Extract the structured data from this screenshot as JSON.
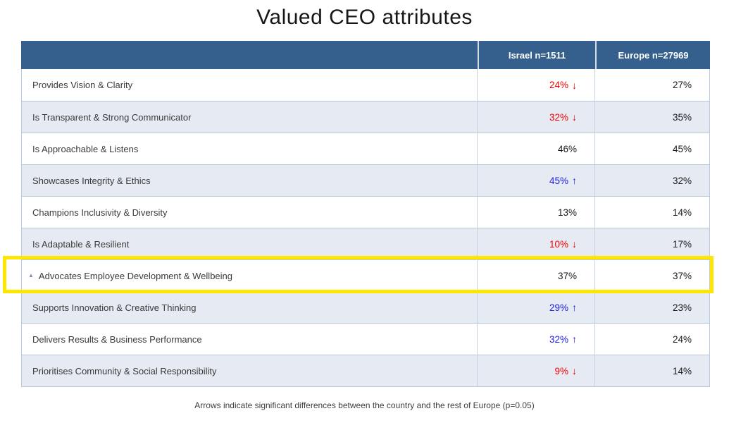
{
  "title": "Valued CEO attributes",
  "footnote": "Arrows indicate significant differences between the country and the rest of Europe (p=0.05)",
  "icons": {
    "up_arrow": "↑",
    "down_arrow": "↓",
    "caret": "▲"
  },
  "colors": {
    "header_bg": "#35608D",
    "row_alt": "#E6EAF2",
    "row_border": "#B9C8DB",
    "sig_down": "#F20000",
    "sig_up": "#2121DF",
    "highlight": "#FFE600"
  },
  "table": {
    "columns": [
      "Israel n=1511",
      "Europe n=27969"
    ],
    "rows": [
      {
        "label": "Provides Vision & Clarity",
        "israel": "24%",
        "israel_sig": "down",
        "europe": "27%",
        "highlighted": false,
        "marker": false
      },
      {
        "label": "Is Transparent & Strong Communicator",
        "israel": "32%",
        "israel_sig": "down",
        "europe": "35%",
        "highlighted": false,
        "marker": false
      },
      {
        "label": "Is Approachable & Listens",
        "israel": "46%",
        "israel_sig": null,
        "europe": "45%",
        "highlighted": false,
        "marker": false
      },
      {
        "label": "Showcases Integrity & Ethics",
        "israel": "45%",
        "israel_sig": "up",
        "europe": "32%",
        "highlighted": false,
        "marker": false
      },
      {
        "label": "Champions Inclusivity & Diversity",
        "israel": "13%",
        "israel_sig": null,
        "europe": "14%",
        "highlighted": false,
        "marker": false
      },
      {
        "label": "Is Adaptable & Resilient",
        "israel": "10%",
        "israel_sig": "down",
        "europe": "17%",
        "highlighted": false,
        "marker": false
      },
      {
        "label": "Advocates Employee Development & Wellbeing",
        "israel": "37%",
        "israel_sig": null,
        "europe": "37%",
        "highlighted": true,
        "marker": true
      },
      {
        "label": "Supports Innovation & Creative Thinking",
        "israel": "29%",
        "israel_sig": "up",
        "europe": "23%",
        "highlighted": false,
        "marker": false
      },
      {
        "label": "Delivers Results & Business Performance",
        "israel": "32%",
        "israel_sig": "up",
        "europe": "24%",
        "highlighted": false,
        "marker": false
      },
      {
        "label": "Prioritises Community & Social Responsibility",
        "israel": "9%",
        "israel_sig": "down",
        "europe": "14%",
        "highlighted": false,
        "marker": false
      }
    ]
  },
  "chart_data": {
    "type": "table",
    "title": "Valued CEO attributes",
    "categories": [
      "Provides Vision & Clarity",
      "Is Transparent & Strong Communicator",
      "Is Approachable & Listens",
      "Showcases Integrity & Ethics",
      "Champions Inclusivity & Diversity",
      "Is Adaptable & Resilient",
      "Advocates Employee Development & Wellbeing",
      "Supports Innovation & Creative Thinking",
      "Delivers Results & Business Performance",
      "Prioritises Community & Social Responsibility"
    ],
    "series": [
      {
        "name": "Israel n=1511",
        "values": [
          24,
          32,
          46,
          45,
          13,
          10,
          37,
          29,
          32,
          9
        ],
        "significance": [
          "down",
          "down",
          null,
          "up",
          null,
          "down",
          null,
          "up",
          "up",
          "down"
        ]
      },
      {
        "name": "Europe n=27969",
        "values": [
          27,
          35,
          45,
          32,
          14,
          17,
          37,
          23,
          24,
          14
        ],
        "significance": [
          null,
          null,
          null,
          null,
          null,
          null,
          null,
          null,
          null,
          null
        ]
      }
    ],
    "highlighted_row": "Advocates Employee Development & Wellbeing",
    "footnote": "Arrows indicate significant differences between the country and the rest of Europe (p=0.05)"
  }
}
